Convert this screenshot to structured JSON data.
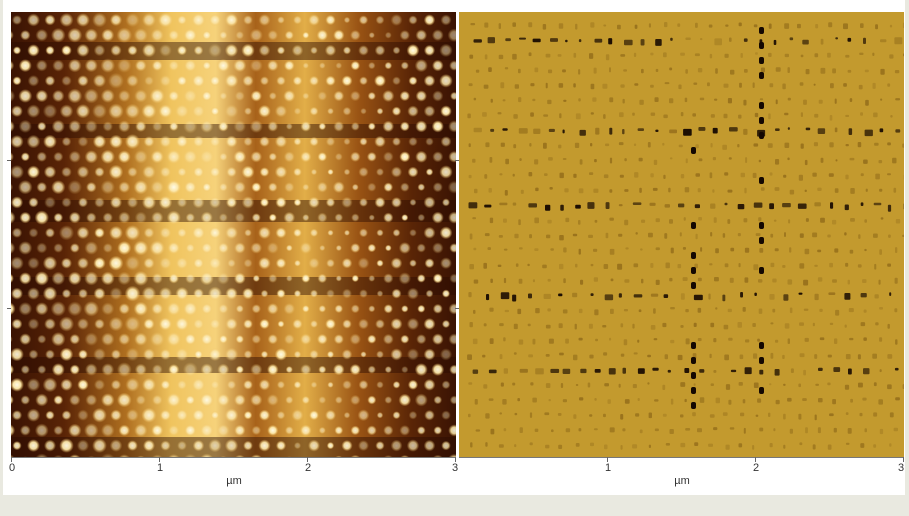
{
  "figure": {
    "left_panel": {
      "description_name": "topography-panel",
      "colors": {
        "dark": "#2a0b02",
        "mid": "#8b4a0d",
        "light": "#f3d07a",
        "bright": "#fff7dc"
      }
    },
    "right_panel": {
      "description_name": "phase-panel",
      "colors": {
        "background": "#c59a2c",
        "mark": "#1a0c02",
        "faint": "#8c6618"
      }
    },
    "left_axis": {
      "ticks": [
        "0",
        "1",
        "2",
        "3"
      ],
      "unit": "µm"
    },
    "right_axis": {
      "ticks": [
        "1",
        "2",
        "3"
      ],
      "unit": "µm"
    }
  }
}
